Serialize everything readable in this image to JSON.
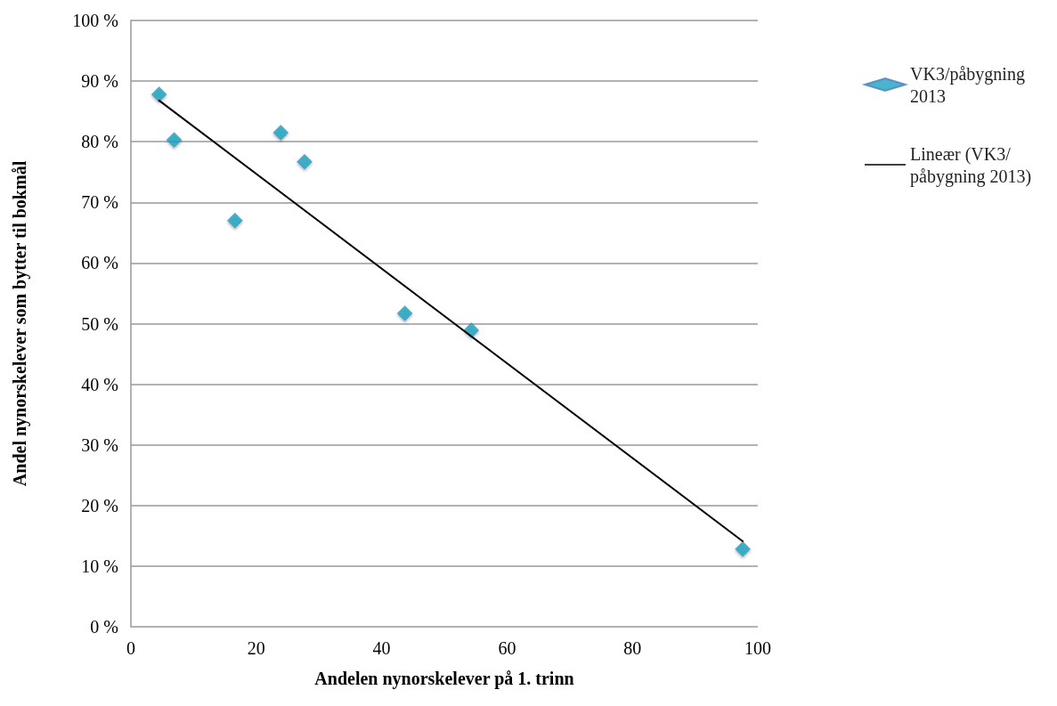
{
  "chart_data": {
    "type": "scatter",
    "xlabel": "Andelen nynorskelever på 1. trinn",
    "ylabel": "Andel nynorskelever som bytter til bokmål",
    "xlim": [
      0,
      100
    ],
    "xticks": [
      0,
      20,
      40,
      60,
      80,
      100
    ],
    "ylim": [
      0,
      100
    ],
    "yticks": [
      {
        "value": 0,
        "label": "0 %"
      },
      {
        "value": 10,
        "label": "10 %"
      },
      {
        "value": 20,
        "label": "20 %"
      },
      {
        "value": 30,
        "label": "30 %"
      },
      {
        "value": 40,
        "label": "40 %"
      },
      {
        "value": 50,
        "label": "50 %"
      },
      {
        "value": 60,
        "label": "60 %"
      },
      {
        "value": 70,
        "label": "70 %"
      },
      {
        "value": 80,
        "label": "80 %"
      },
      {
        "value": 90,
        "label": "90 %"
      },
      {
        "value": 100,
        "label": "100 %"
      }
    ],
    "grid": "y",
    "legend": "top right",
    "marker": "diamond",
    "series": [
      {
        "type": "scatter",
        "name": "VK3/påbygning 2013",
        "color": "#1ba3bf",
        "x": [
          4.5,
          6.9,
          16.6,
          23.9,
          27.7,
          43.7,
          54.3,
          97.6
        ],
        "values": [
          87.8,
          80.3,
          67.0,
          81.5,
          76.7,
          51.7,
          48.9,
          12.8
        ]
      },
      {
        "type": "line",
        "name": "Lineær (VK3/påbygning 2013)",
        "color": "#000000",
        "marker": "none",
        "line_style": "solid",
        "x": [
          4.5,
          97.6
        ],
        "values": [
          86.8,
          14.1
        ]
      }
    ]
  }
}
